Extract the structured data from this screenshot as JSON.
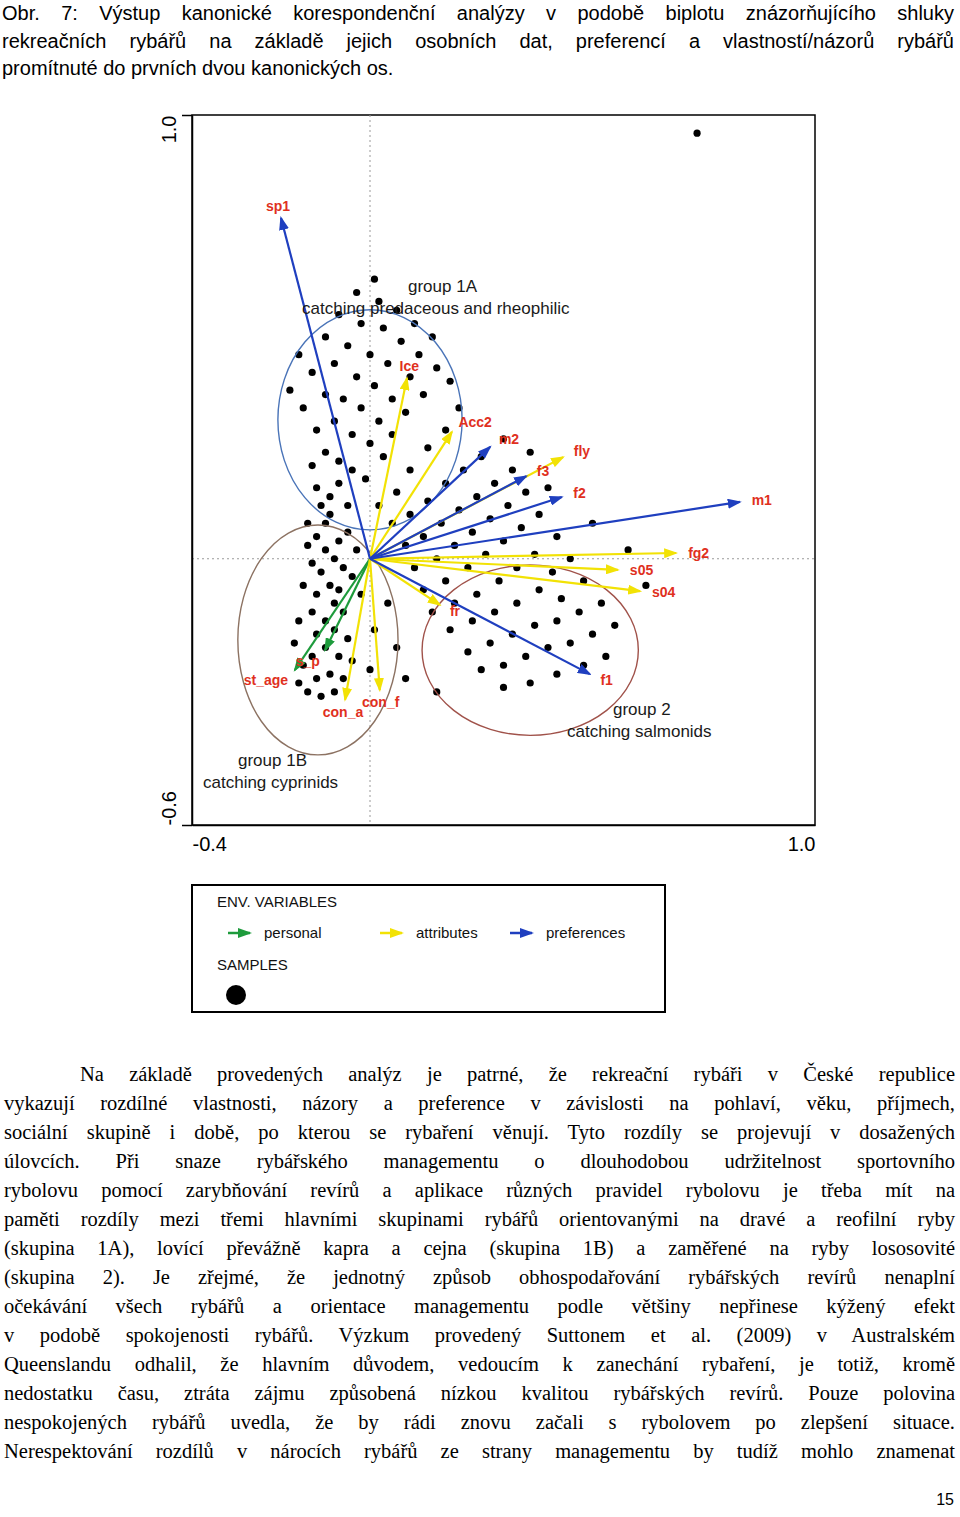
{
  "caption": {
    "lines": [
      "Obr. 7: Výstup kanonické korespondenční analýzy v podobě biplotu znázorňujícího shluky",
      "rekreačních rybářů na základě jejich osobních dat, preferencí a vlastností/názorů rybářů",
      "promítnuté do prvních dvou kanonických os."
    ]
  },
  "chart_data": {
    "type": "biplot",
    "xlim": [
      -0.4,
      1.0
    ],
    "ylim": [
      -0.6,
      1.0
    ],
    "xticks": [
      -0.4,
      {
        "value": 1.0,
        "label": "1.0"
      }
    ],
    "yticks": [
      -0.6,
      {
        "value": 1.0,
        "label": "1.0"
      }
    ],
    "zero_lines": {
      "x": 0,
      "y": 0
    },
    "grid": false,
    "legend": "bottom",
    "legend_title": "ENV. VARIABLES",
    "samples": {
      "name": "SAMPLES",
      "color": "#000000",
      "marker": "circle",
      "points": [
        [
          -0.12,
          0.05
        ],
        [
          -0.1,
          0.02
        ],
        [
          -0.08,
          0.0
        ],
        [
          -0.11,
          -0.03
        ],
        [
          -0.09,
          -0.06
        ],
        [
          -0.13,
          -0.01
        ],
        [
          -0.07,
          0.04
        ],
        [
          -0.1,
          0.08
        ],
        [
          -0.12,
          -0.08
        ],
        [
          -0.08,
          -0.1
        ],
        [
          -0.06,
          -0.02
        ],
        [
          -0.14,
          0.03
        ],
        [
          -0.09,
          0.1
        ],
        [
          -0.11,
          0.12
        ],
        [
          -0.07,
          -0.07
        ],
        [
          -0.13,
          -0.12
        ],
        [
          -0.1,
          -0.14
        ],
        [
          -0.06,
          -0.12
        ],
        [
          -0.12,
          -0.17
        ],
        [
          -0.08,
          -0.16
        ],
        [
          -0.05,
          0.06
        ],
        [
          -0.04,
          -0.04
        ],
        [
          -0.15,
          -0.06
        ],
        [
          -0.14,
          0.08
        ],
        [
          -0.09,
          0.14
        ],
        [
          -0.07,
          0.17
        ],
        [
          -0.12,
          0.16
        ],
        [
          -0.05,
          0.12
        ],
        [
          -0.03,
          0.02
        ],
        [
          -0.02,
          -0.08
        ],
        [
          -0.16,
          -0.14
        ],
        [
          -0.1,
          -0.2
        ],
        [
          -0.13,
          -0.22
        ],
        [
          -0.07,
          -0.22
        ],
        [
          -0.09,
          -0.26
        ],
        [
          -0.12,
          -0.27
        ],
        [
          -0.15,
          -0.24
        ],
        [
          -0.05,
          -0.18
        ],
        [
          -0.17,
          -0.19
        ],
        [
          -0.11,
          -0.31
        ],
        [
          -0.08,
          -0.3
        ],
        [
          -0.14,
          -0.3
        ],
        [
          -0.16,
          -0.28
        ],
        [
          -0.06,
          -0.27
        ],
        [
          -0.04,
          -0.23
        ],
        [
          -0.13,
          0.21
        ],
        [
          -0.1,
          0.24
        ],
        [
          -0.07,
          0.22
        ],
        [
          -0.04,
          0.2
        ],
        [
          -0.01,
          0.18
        ],
        [
          -0.12,
          0.29
        ],
        [
          -0.08,
          0.31
        ],
        [
          -0.04,
          0.28
        ],
        [
          0.0,
          0.26
        ],
        [
          0.03,
          0.23
        ],
        [
          -0.15,
          0.34
        ],
        [
          -0.1,
          0.37
        ],
        [
          -0.06,
          0.36
        ],
        [
          -0.02,
          0.34
        ],
        [
          0.02,
          0.31
        ],
        [
          0.05,
          0.28
        ],
        [
          -0.13,
          0.42
        ],
        [
          -0.08,
          0.44
        ],
        [
          -0.03,
          0.41
        ],
        [
          0.01,
          0.39
        ],
        [
          0.05,
          0.36
        ],
        [
          0.08,
          0.33
        ],
        [
          -0.1,
          0.5
        ],
        [
          -0.05,
          0.48
        ],
        [
          0.0,
          0.46
        ],
        [
          0.04,
          0.44
        ],
        [
          0.09,
          0.41
        ],
        [
          0.12,
          0.37
        ],
        [
          -0.07,
          0.55
        ],
        [
          -0.02,
          0.53
        ],
        [
          0.03,
          0.52
        ],
        [
          0.07,
          0.49
        ],
        [
          0.11,
          0.46
        ],
        [
          0.15,
          0.43
        ],
        [
          -0.03,
          0.6
        ],
        [
          0.02,
          0.58
        ],
        [
          0.06,
          0.56
        ],
        [
          0.1,
          0.53
        ],
        [
          0.14,
          0.5
        ],
        [
          0.01,
          0.63
        ],
        [
          -0.16,
          0.46
        ],
        [
          -0.18,
          0.38
        ],
        [
          0.18,
          0.4
        ],
        [
          0.2,
          0.34
        ],
        [
          0.17,
          0.29
        ],
        [
          0.13,
          0.25
        ],
        [
          0.09,
          0.2
        ],
        [
          0.06,
          0.15
        ],
        [
          0.02,
          0.12
        ],
        [
          0.05,
          0.08
        ],
        [
          0.09,
          0.1
        ],
        [
          0.13,
          0.13
        ],
        [
          0.17,
          0.17
        ],
        [
          0.21,
          0.2
        ],
        [
          0.25,
          0.23
        ],
        [
          0.08,
          0.03
        ],
        [
          0.12,
          0.05
        ],
        [
          0.16,
          0.08
        ],
        [
          0.2,
          0.11
        ],
        [
          0.24,
          0.14
        ],
        [
          0.28,
          0.17
        ],
        [
          0.32,
          0.2
        ],
        [
          0.1,
          -0.02
        ],
        [
          0.15,
          0.0
        ],
        [
          0.19,
          0.03
        ],
        [
          0.23,
          0.06
        ],
        [
          0.27,
          0.09
        ],
        [
          0.31,
          0.12
        ],
        [
          0.35,
          0.15
        ],
        [
          0.12,
          -0.07
        ],
        [
          0.17,
          -0.05
        ],
        [
          0.22,
          -0.02
        ],
        [
          0.26,
          0.01
        ],
        [
          0.3,
          0.04
        ],
        [
          0.34,
          0.07
        ],
        [
          0.38,
          0.1
        ],
        [
          0.42,
          0.05
        ],
        [
          0.14,
          -0.12
        ],
        [
          0.19,
          -0.1
        ],
        [
          0.24,
          -0.08
        ],
        [
          0.29,
          -0.05
        ],
        [
          0.33,
          -0.02
        ],
        [
          0.37,
          0.01
        ],
        [
          0.41,
          -0.03
        ],
        [
          0.45,
          0.0
        ],
        [
          0.18,
          -0.16
        ],
        [
          0.23,
          -0.14
        ],
        [
          0.28,
          -0.12
        ],
        [
          0.33,
          -0.1
        ],
        [
          0.38,
          -0.07
        ],
        [
          0.43,
          -0.09
        ],
        [
          0.48,
          -0.05
        ],
        [
          0.22,
          -0.21
        ],
        [
          0.27,
          -0.19
        ],
        [
          0.32,
          -0.17
        ],
        [
          0.37,
          -0.15
        ],
        [
          0.42,
          -0.14
        ],
        [
          0.47,
          -0.12
        ],
        [
          0.52,
          -0.1
        ],
        [
          0.25,
          -0.25
        ],
        [
          0.3,
          -0.24
        ],
        [
          0.35,
          -0.22
        ],
        [
          0.4,
          -0.2
        ],
        [
          0.45,
          -0.19
        ],
        [
          0.5,
          -0.17
        ],
        [
          0.55,
          -0.15
        ],
        [
          0.3,
          -0.29
        ],
        [
          0.36,
          -0.28
        ],
        [
          0.42,
          -0.26
        ],
        [
          0.48,
          -0.24
        ],
        [
          0.53,
          -0.22
        ],
        [
          0.04,
          -0.1
        ],
        [
          0.01,
          -0.16
        ],
        [
          0.06,
          -0.2
        ],
        [
          0.0,
          -0.25
        ],
        [
          0.08,
          -0.27
        ],
        [
          0.15,
          -0.3
        ],
        [
          0.58,
          0.02
        ],
        [
          0.62,
          -0.06
        ],
        [
          0.5,
          0.08
        ],
        [
          0.4,
          0.16
        ],
        [
          0.36,
          0.24
        ],
        [
          0.3,
          0.27
        ],
        [
          0.735,
          0.959
        ]
      ]
    },
    "series": [
      {
        "name": "personal",
        "color": "#1e9b3c",
        "arrows": [
          {
            "label": "st_age",
            "x": -0.169,
            "y": -0.251
          },
          {
            "label": "s_p",
            "x": -0.101,
            "y": -0.206
          }
        ]
      },
      {
        "name": "attributes",
        "color": "#f2e205",
        "arrows": [
          {
            "label": "Ice",
            "x": 0.083,
            "y": 0.407
          },
          {
            "label": "Acc2",
            "x": 0.184,
            "y": 0.286
          },
          {
            "label": "fly",
            "x": 0.434,
            "y": 0.229
          },
          {
            "label": "fg2",
            "x": 0.688,
            "y": 0.013
          },
          {
            "label": "s05",
            "x": 0.557,
            "y": -0.025
          },
          {
            "label": "s04",
            "x": 0.607,
            "y": -0.073
          },
          {
            "label": "fr",
            "x": 0.157,
            "y": -0.104
          },
          {
            "label": "con_a",
            "x": -0.056,
            "y": -0.318
          },
          {
            "label": "con_f",
            "x": 0.022,
            "y": -0.296
          }
        ]
      },
      {
        "name": "preferences",
        "color": "#1f3fbf",
        "arrows": [
          {
            "label": "sp1",
            "x": -0.2,
            "y": 0.768
          },
          {
            "label": "m2",
            "x": 0.27,
            "y": 0.252
          },
          {
            "label": "f3",
            "x": 0.351,
            "y": 0.186
          },
          {
            "label": "f2",
            "x": 0.431,
            "y": 0.139
          },
          {
            "label": "m1",
            "x": 0.831,
            "y": 0.128
          },
          {
            "label": "f1",
            "x": 0.494,
            "y": -0.26
          }
        ]
      }
    ],
    "groups": [
      {
        "title": "group 1A",
        "subtitle": "catching predaceous and rheophilic",
        "cx": 0.0,
        "cy": 0.313,
        "rx": 0.207,
        "ry": 0.248,
        "color": "#4a74b8"
      },
      {
        "title": "group 1B",
        "subtitle": "catching cyprinids",
        "cx": -0.117,
        "cy": -0.183,
        "rx": 0.18,
        "ry": 0.259,
        "color": "#8c7262"
      },
      {
        "title": "group 2",
        "subtitle": "catching salmonids",
        "cx": 0.36,
        "cy": -0.206,
        "rx": 0.243,
        "ry": 0.192,
        "color": "#a0524a"
      }
    ]
  },
  "body": {
    "lines": [
      "Na základě provedených analýz je patrné, že rekreační rybáři v České republice",
      "vykazují rozdílné vlastnosti, názory a preference v závislosti na pohlaví, věku, příjmech,",
      "sociální skupině i době, po kterou se rybaření věnují. Tyto rozdíly se projevují v dosažených",
      "úlovcích. Při snaze rybářského managementu o dlouhodobou udržitelnost sportovního",
      "rybolovu pomocí zarybňování revírů a aplikace různých pravidel rybolovu je třeba mít na",
      "paměti rozdíly mezi třemi hlavními skupinami rybářů orientovanými na dravé a reofilní ryby",
      "(skupina 1A), lovící převážně kapra a cejna (skupina 1B) a zaměřené na ryby lososovité",
      "(skupina 2). Je zřejmé, že jednotný způsob obhospodařování rybářských revírů nenaplní",
      "očekávání všech rybářů a orientace managementu podle většiny nepřinese kýžený efekt",
      "v podobě spokojenosti rybářů. Výzkum provedený Suttonem et al. (2009) v Australském",
      "Queenslandu odhalil, že hlavním důvodem, vedoucím k zanechání rybaření, je totiž, kromě",
      "nedostatku času, ztráta zájmu způsobená nízkou kvalitou rybářských revírů. Pouze polovina",
      "nespokojených rybářů uvedla, že by rádi znovu začali s rybolovem po zlepšení situace.",
      "Nerespektování rozdílů v nárocích rybářů ze strany managementu by tudíž mohlo znamenat"
    ]
  },
  "page_number": "15"
}
